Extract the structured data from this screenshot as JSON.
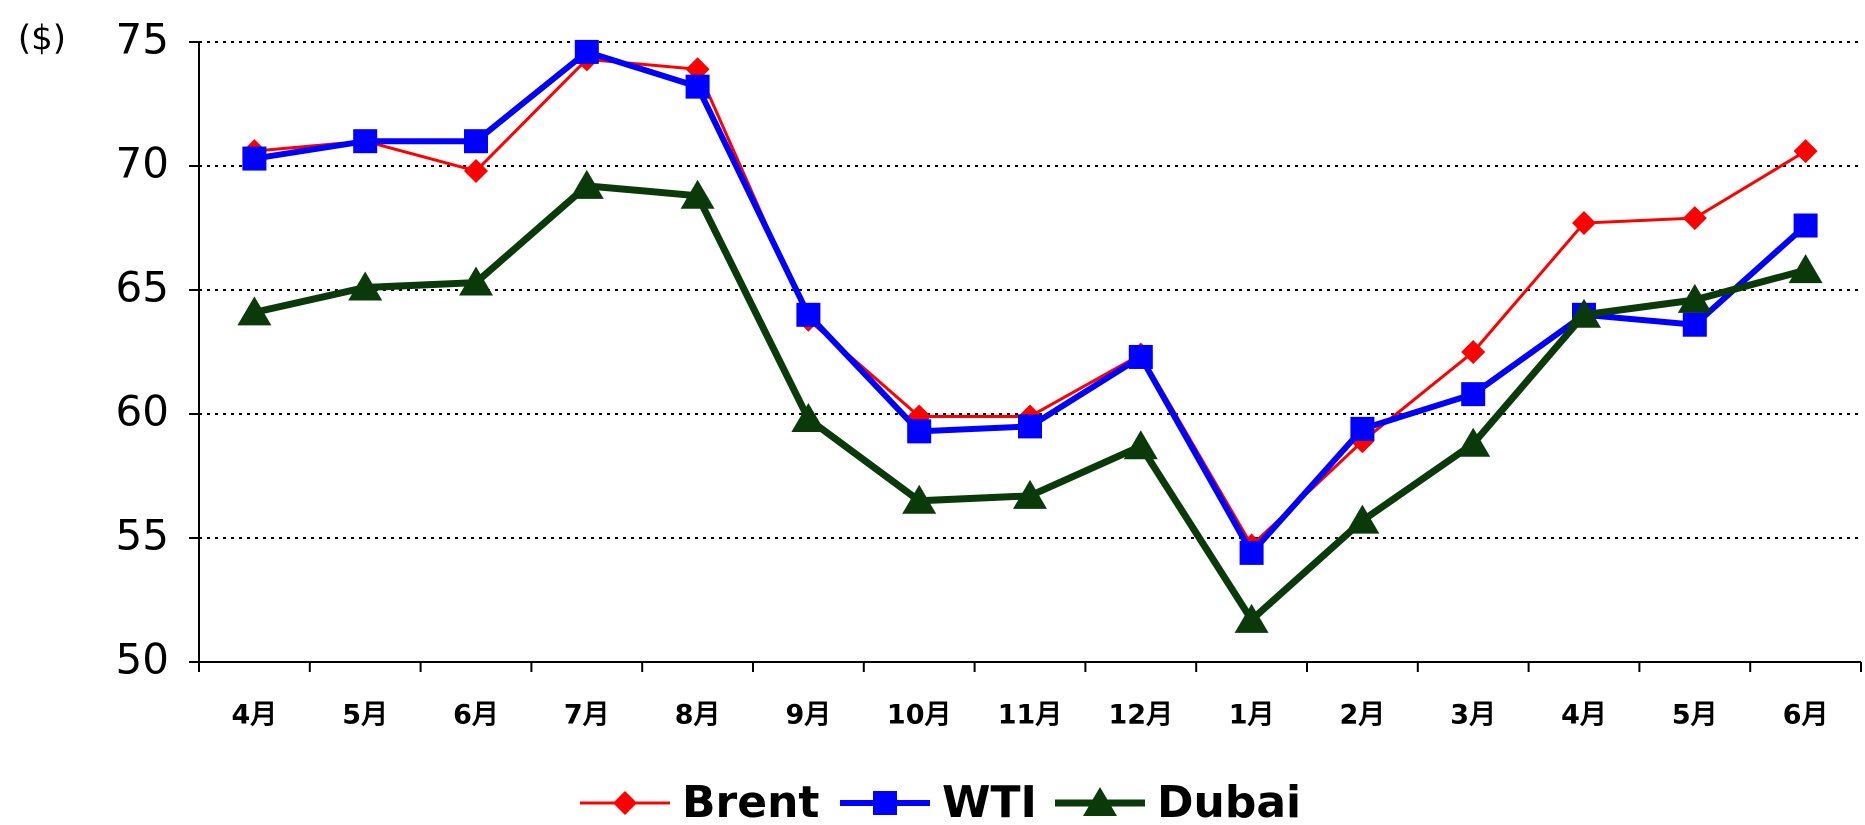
{
  "chart_data": {
    "type": "line",
    "y_label": "($)",
    "categories": [
      "4月",
      "5月",
      "6月",
      "7月",
      "8月",
      "9月",
      "10月",
      "11月",
      "12月",
      "1月",
      "2月",
      "3月",
      "4月",
      "5月",
      "6月"
    ],
    "series": [
      {
        "name": "Brent",
        "color": "#ff0000",
        "marker": "diamond",
        "values": [
          70.6,
          71.0,
          69.8,
          74.3,
          73.9,
          63.8,
          59.9,
          59.9,
          62.4,
          54.7,
          58.9,
          62.5,
          67.7,
          67.9,
          70.6
        ]
      },
      {
        "name": "WTI",
        "color": "#0000ff",
        "marker": "square",
        "values": [
          70.3,
          71.0,
          71.0,
          74.6,
          73.2,
          64.0,
          59.3,
          59.5,
          62.3,
          54.4,
          59.4,
          60.8,
          64.0,
          63.6,
          67.6
        ]
      },
      {
        "name": "Dubai",
        "color": "#0a3a0a",
        "marker": "triangle",
        "values": [
          64.1,
          65.1,
          65.3,
          69.2,
          68.8,
          59.8,
          56.5,
          56.7,
          58.7,
          51.7,
          55.7,
          58.8,
          64.0,
          64.6,
          65.8
        ]
      }
    ],
    "ylim": [
      50,
      75
    ],
    "yticks": [
      50,
      55,
      60,
      65,
      70,
      75
    ],
    "grid": true,
    "legend": "bottom"
  }
}
